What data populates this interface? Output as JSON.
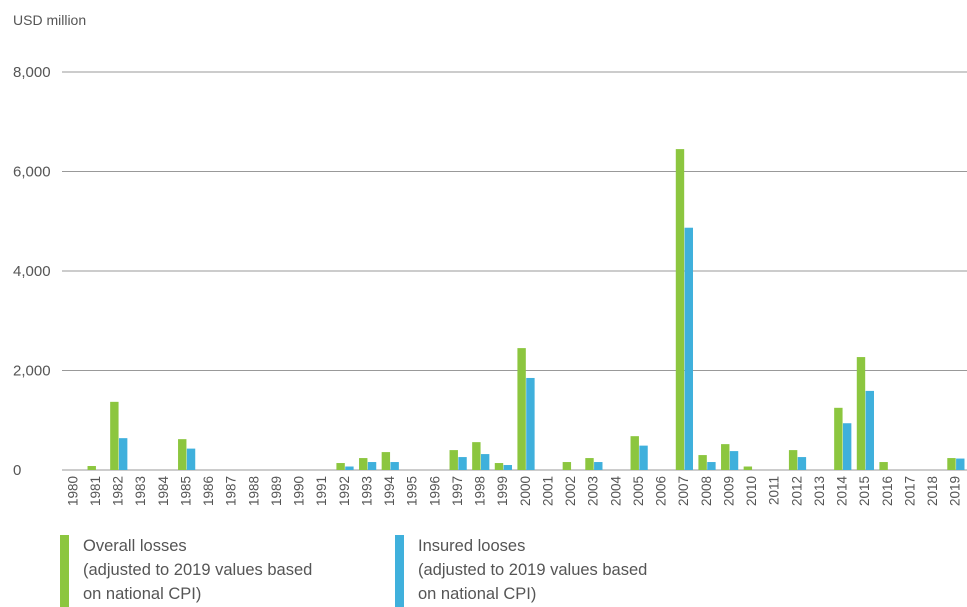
{
  "chart_data": {
    "type": "bar",
    "ylabel": "USD million",
    "ylim": [
      0,
      8000
    ],
    "yticks": [
      "8,000",
      "6,000",
      "4,000",
      "2,000",
      "0"
    ],
    "ytick_values": [
      8000,
      6000,
      4000,
      2000,
      0
    ],
    "grid": true,
    "legend_placement": "bottom",
    "categories": [
      "1980",
      "1981",
      "1982",
      "1983",
      "1984",
      "1985",
      "1986",
      "1987",
      "1988",
      "1989",
      "1990",
      "1991",
      "1992",
      "1993",
      "1994",
      "1995",
      "1996",
      "1997",
      "1998",
      "1999",
      "2000",
      "2001",
      "2002",
      "2003",
      "2004",
      "2005",
      "2006",
      "2007",
      "2008",
      "2009",
      "2010",
      "2011",
      "2012",
      "2013",
      "2014",
      "2015",
      "2016",
      "2017",
      "2018",
      "2019"
    ],
    "series": [
      {
        "name": "Overall losses",
        "name_lines": [
          "Overall losses",
          "(adjusted to 2019 values based",
          "on national CPI)"
        ],
        "color": "#8cc63f",
        "values": [
          0,
          80,
          1370,
          0,
          0,
          620,
          0,
          0,
          0,
          0,
          0,
          0,
          140,
          240,
          360,
          0,
          0,
          400,
          560,
          140,
          2450,
          0,
          160,
          240,
          0,
          680,
          0,
          6450,
          300,
          520,
          70,
          0,
          400,
          0,
          1250,
          2270,
          160,
          0,
          0,
          240
        ]
      },
      {
        "name": "Insured looses",
        "name_lines": [
          "Insured looses",
          "(adjusted to 2019 values based",
          "on national CPI)"
        ],
        "color": "#3fb0dc",
        "values": [
          0,
          0,
          640,
          0,
          0,
          430,
          0,
          0,
          0,
          0,
          0,
          0,
          70,
          160,
          160,
          0,
          0,
          260,
          320,
          100,
          1850,
          0,
          0,
          160,
          0,
          490,
          0,
          4870,
          160,
          380,
          0,
          0,
          260,
          0,
          940,
          1590,
          0,
          0,
          0,
          230
        ]
      }
    ]
  }
}
